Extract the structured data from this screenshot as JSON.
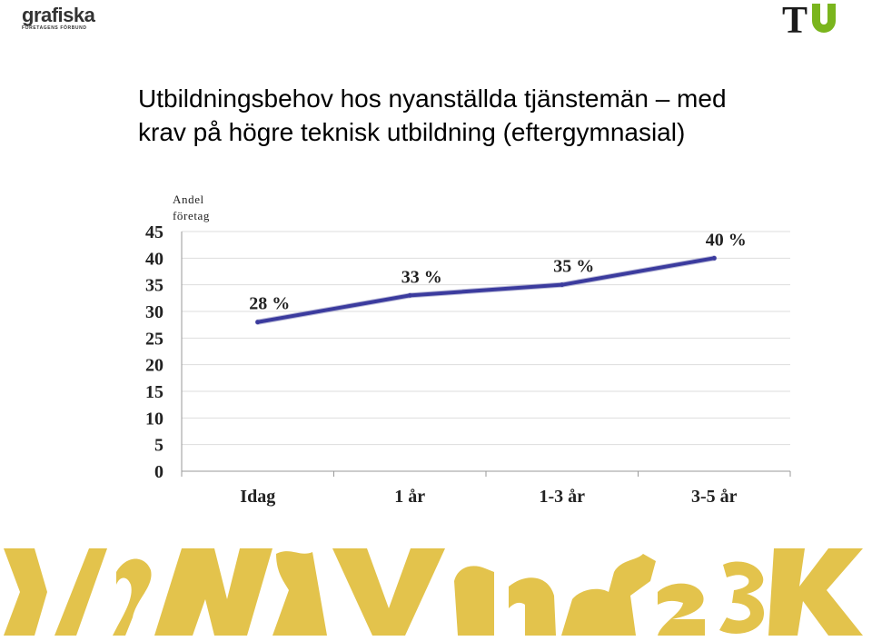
{
  "header": {
    "logo_left_text": "grafiska",
    "logo_left_subtext": "FÖRETAGENS FÖRBUND",
    "logo_right_text": "TU",
    "logo_right_colors": [
      "#1a1a1a",
      "#7ab51d"
    ]
  },
  "colors": {
    "line": "#3b3b9e",
    "grid": "#dddddd",
    "axis": "#999999",
    "banner": "#e3c34c"
  },
  "chart_data": {
    "type": "line",
    "title": "Utbildningsbehov hos nyanställda tjänstemän – med krav på högre teknisk utbildning (eftergymnasial)",
    "ylabel": "Andel företag",
    "xlabel": "",
    "categories": [
      "Idag",
      "1 år",
      "1-3 år",
      "3-5 år"
    ],
    "values": [
      28,
      33,
      35,
      40
    ],
    "data_labels": [
      "28 %",
      "33 %",
      "35 %",
      "40 %"
    ],
    "ylim": [
      0,
      45
    ],
    "yticks": [
      0,
      5,
      10,
      15,
      20,
      25,
      30,
      35,
      40,
      45
    ],
    "grid": true,
    "legend": "none"
  }
}
